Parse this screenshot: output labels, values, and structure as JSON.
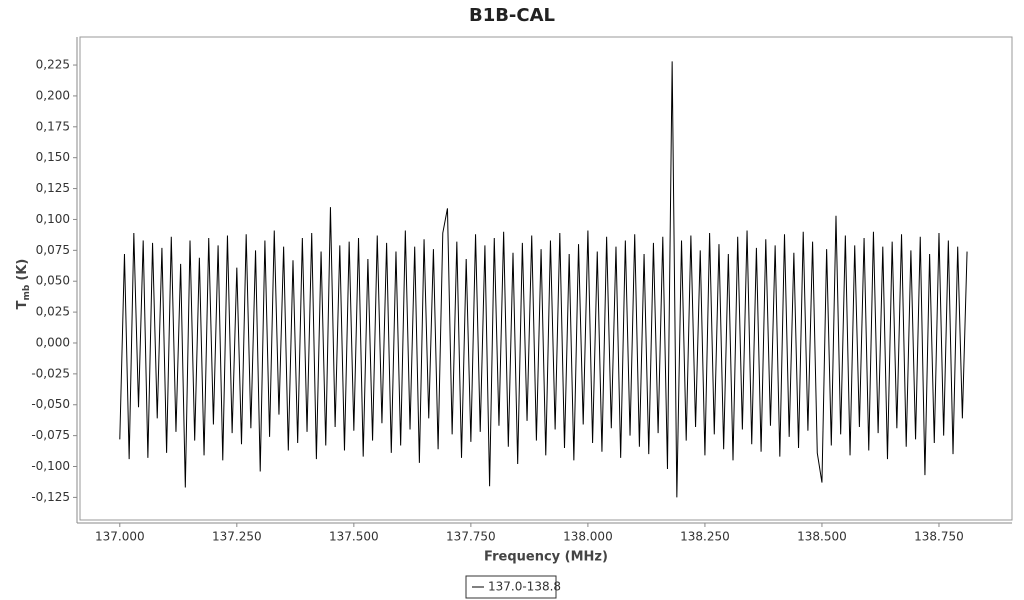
{
  "chart_data": {
    "type": "line",
    "title": "B1B-CAL",
    "x_label": "Frequency (MHz)",
    "y_label": {
      "main": "T",
      "sub": "mb",
      "unit": "(K)"
    },
    "xlim": [
      136.915,
      138.906
    ],
    "ylim": [
      -0.1433,
      0.2477
    ],
    "xticks": [
      {
        "value": 137,
        "label": "137.000"
      },
      {
        "value": 137.25,
        "label": "137.250"
      },
      {
        "value": 137.5,
        "label": "137.500"
      },
      {
        "value": 137.75,
        "label": "137.750"
      },
      {
        "value": 138,
        "label": "138.000"
      },
      {
        "value": 138.25,
        "label": "138.250"
      },
      {
        "value": 138.5,
        "label": "138.500"
      },
      {
        "value": 138.75,
        "label": "138.750"
      }
    ],
    "yticks": [
      {
        "value": -0.125,
        "label": "-0,125"
      },
      {
        "value": -0.1,
        "label": "-0,100"
      },
      {
        "value": -0.075,
        "label": "-0,075"
      },
      {
        "value": -0.05,
        "label": "-0,050"
      },
      {
        "value": -0.025,
        "label": "-0,025"
      },
      {
        "value": 0,
        "label": "0,000"
      },
      {
        "value": 0.025,
        "label": "0,025"
      },
      {
        "value": 0.05,
        "label": "0,050"
      },
      {
        "value": 0.075,
        "label": "0,075"
      },
      {
        "value": 0.1,
        "label": "0,100"
      },
      {
        "value": 0.125,
        "label": "0,125"
      },
      {
        "value": 0.15,
        "label": "0,150"
      },
      {
        "value": 0.175,
        "label": "0,175"
      },
      {
        "value": 0.2,
        "label": "0,200"
      },
      {
        "value": 0.225,
        "label": "0,225"
      }
    ],
    "x": [
      137,
      137.01,
      137.02,
      137.03,
      137.04,
      137.05,
      137.06,
      137.07,
      137.08,
      137.09,
      137.1,
      137.11,
      137.12,
      137.13,
      137.14,
      137.15,
      137.16,
      137.17,
      137.18,
      137.19,
      137.2,
      137.21,
      137.22,
      137.23,
      137.24,
      137.25,
      137.26,
      137.27,
      137.28,
      137.29,
      137.3,
      137.31,
      137.32,
      137.33,
      137.34,
      137.35,
      137.36,
      137.37,
      137.38,
      137.39,
      137.4,
      137.41,
      137.42,
      137.43,
      137.44,
      137.45,
      137.46,
      137.47,
      137.48,
      137.49,
      137.5,
      137.51,
      137.52,
      137.53,
      137.54,
      137.55,
      137.56,
      137.57,
      137.58,
      137.59,
      137.6,
      137.61,
      137.62,
      137.63,
      137.64,
      137.65,
      137.66,
      137.67,
      137.68,
      137.69,
      137.7,
      137.71,
      137.72,
      137.73,
      137.74,
      137.75,
      137.76,
      137.77,
      137.78,
      137.79,
      137.8,
      137.81,
      137.82,
      137.83,
      137.84,
      137.85,
      137.86,
      137.87,
      137.88,
      137.89,
      137.9,
      137.91,
      137.92,
      137.93,
      137.94,
      137.95,
      137.96,
      137.97,
      137.98,
      137.99,
      138,
      138.01,
      138.02,
      138.03,
      138.04,
      138.05,
      138.06,
      138.07,
      138.08,
      138.09,
      138.1,
      138.11,
      138.12,
      138.13,
      138.14,
      138.15,
      138.16,
      138.17,
      138.18,
      138.19,
      138.2,
      138.21,
      138.22,
      138.23,
      138.24,
      138.25,
      138.26,
      138.27,
      138.28,
      138.29,
      138.3,
      138.31,
      138.32,
      138.33,
      138.34,
      138.35,
      138.36,
      138.37,
      138.38,
      138.39,
      138.4,
      138.41,
      138.42,
      138.43,
      138.44,
      138.45,
      138.46,
      138.47,
      138.48,
      138.49,
      138.5,
      138.51,
      138.52,
      138.53,
      138.54,
      138.55,
      138.56,
      138.57,
      138.58,
      138.59,
      138.6,
      138.61,
      138.62,
      138.63,
      138.64,
      138.65,
      138.66,
      138.67,
      138.68,
      138.69,
      138.7,
      138.71,
      138.72,
      138.73,
      138.74,
      138.75,
      138.76,
      138.77,
      138.78,
      138.79,
      138.8,
      138.81
    ],
    "series": [
      {
        "name": "137.0-138.8",
        "color": "#000000",
        "values": [
          -0.078,
          0.072,
          -0.094,
          0.089,
          -0.052,
          0.083,
          -0.093,
          0.081,
          -0.061,
          0.077,
          -0.089,
          0.086,
          -0.072,
          0.064,
          -0.117,
          0.083,
          -0.079,
          0.069,
          -0.091,
          0.085,
          -0.066,
          0.079,
          -0.095,
          0.087,
          -0.073,
          0.061,
          -0.082,
          0.088,
          -0.069,
          0.075,
          -0.104,
          0.083,
          -0.076,
          0.091,
          -0.058,
          0.078,
          -0.087,
          0.067,
          -0.081,
          0.085,
          -0.072,
          0.089,
          -0.094,
          0.074,
          -0.083,
          0.11,
          -0.068,
          0.079,
          -0.087,
          0.082,
          -0.071,
          0.085,
          -0.092,
          0.068,
          -0.079,
          0.087,
          -0.065,
          0.081,
          -0.089,
          0.074,
          -0.083,
          0.091,
          -0.07,
          0.078,
          -0.097,
          0.084,
          -0.061,
          0.076,
          -0.086,
          0.089,
          0.109,
          -0.074,
          0.082,
          -0.093,
          0.068,
          -0.08,
          0.088,
          -0.072,
          0.079,
          -0.116,
          0.085,
          -0.067,
          0.09,
          -0.084,
          0.073,
          -0.098,
          0.081,
          -0.063,
          0.087,
          -0.079,
          0.076,
          -0.091,
          0.083,
          -0.07,
          0.089,
          -0.085,
          0.072,
          -0.095,
          0.08,
          -0.066,
          0.091,
          -0.081,
          0.074,
          -0.088,
          0.086,
          -0.069,
          0.078,
          -0.093,
          0.083,
          -0.075,
          0.088,
          -0.084,
          0.072,
          -0.09,
          0.081,
          -0.073,
          0.086,
          -0.102,
          0.228,
          -0.125,
          0.083,
          -0.079,
          0.087,
          -0.068,
          0.075,
          -0.091,
          0.089,
          -0.074,
          0.08,
          -0.086,
          0.072,
          -0.095,
          0.086,
          -0.07,
          0.091,
          -0.082,
          0.077,
          -0.088,
          0.084,
          -0.067,
          0.079,
          -0.092,
          0.088,
          -0.076,
          0.073,
          -0.085,
          0.09,
          -0.071,
          0.082,
          -0.089,
          -0.113,
          0.076,
          -0.083,
          0.103,
          -0.074,
          0.087,
          -0.091,
          0.079,
          -0.068,
          0.085,
          -0.087,
          0.09,
          -0.073,
          0.078,
          -0.094,
          0.082,
          -0.069,
          0.088,
          -0.084,
          0.075,
          -0.078,
          0.086,
          -0.107,
          0.072,
          -0.081,
          0.089,
          -0.075,
          0.083,
          -0.09,
          0.078,
          -0.061,
          0.074
        ]
      }
    ]
  }
}
